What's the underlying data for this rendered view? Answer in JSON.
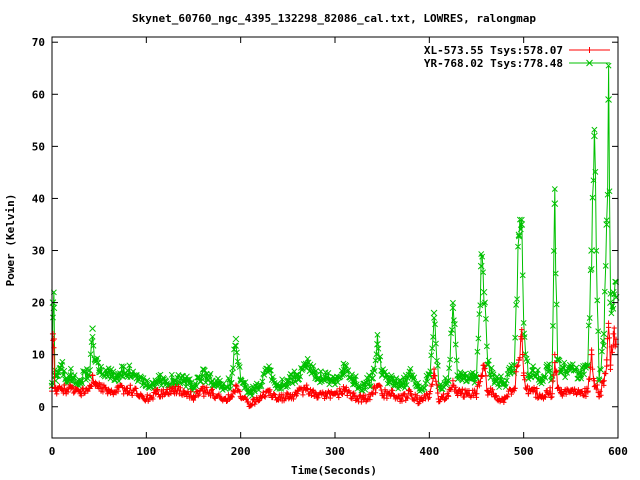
{
  "chart_data": {
    "type": "line",
    "title": "Skynet_60760_ngc_4395_132298_82086_cal.txt, LOWRES, ralongmap",
    "xlabel": "Time(Seconds)",
    "ylabel": "Power (Kelvin)",
    "xlim": [
      0,
      600
    ],
    "ylim": [
      -6,
      71
    ],
    "x_ticks": [
      0,
      100,
      200,
      300,
      400,
      500,
      600
    ],
    "y_ticks": [
      0,
      10,
      20,
      30,
      40,
      50,
      60,
      70
    ],
    "grid": false,
    "legend_position": "top-right",
    "sample_interval": 1,
    "series": [
      {
        "name": "XL-573.55 Tsys:578.07",
        "color": "#ff0000",
        "marker": "plus",
        "x": [
          0,
          1,
          2,
          3,
          4,
          5,
          6,
          10,
          15,
          20,
          30,
          40,
          43,
          46,
          50,
          60,
          70,
          80,
          90,
          100,
          110,
          120,
          130,
          140,
          150,
          160,
          170,
          180,
          190,
          195,
          200,
          210,
          220,
          230,
          240,
          250,
          260,
          270,
          280,
          290,
          300,
          310,
          320,
          330,
          340,
          345,
          350,
          360,
          370,
          380,
          390,
          400,
          405,
          410,
          420,
          425,
          430,
          440,
          450,
          455,
          458,
          462,
          470,
          480,
          490,
          495,
          498,
          500,
          505,
          510,
          520,
          525,
          530,
          533,
          536,
          540,
          550,
          560,
          568,
          572,
          575,
          580,
          585,
          588,
          590,
          592,
          595,
          598
        ],
        "y": [
          3,
          14,
          13,
          3.5,
          3,
          3,
          3.5,
          3.5,
          3,
          3.5,
          2.5,
          3.5,
          6,
          4,
          3.5,
          3,
          3,
          3.5,
          2.5,
          1.5,
          2.5,
          2.5,
          3,
          3,
          2,
          3,
          2.5,
          1.5,
          2,
          4,
          2,
          0.5,
          1.5,
          3,
          1.5,
          2,
          2.5,
          3.5,
          2.5,
          2.5,
          2.5,
          3,
          2,
          1.5,
          2.5,
          4,
          2.5,
          2.5,
          1.5,
          2.5,
          1,
          2.5,
          6,
          1.5,
          2,
          5,
          2.5,
          2.5,
          2.5,
          6,
          8,
          3,
          2,
          1.5,
          3.5,
          9,
          13,
          6,
          2.5,
          3,
          2,
          3,
          2.5,
          10,
          3.5,
          2.5,
          3,
          2.5,
          3,
          10,
          5,
          2,
          5,
          9,
          16,
          8,
          14,
          12
        ]
      },
      {
        "name": "YR-768.02 Tsys:778.48",
        "color": "#00c000",
        "marker": "cross",
        "x": [
          0,
          1,
          2,
          3,
          4,
          5,
          6,
          10,
          15,
          20,
          30,
          40,
          43,
          46,
          50,
          60,
          70,
          80,
          90,
          100,
          110,
          120,
          130,
          140,
          150,
          160,
          170,
          180,
          190,
          195,
          200,
          210,
          220,
          230,
          240,
          250,
          260,
          270,
          280,
          290,
          300,
          310,
          320,
          330,
          340,
          345,
          350,
          360,
          370,
          380,
          390,
          400,
          405,
          410,
          420,
          425,
          430,
          440,
          450,
          455,
          458,
          462,
          470,
          480,
          490,
          495,
          498,
          500,
          505,
          510,
          520,
          525,
          530,
          533,
          536,
          540,
          550,
          560,
          568,
          572,
          575,
          580,
          585,
          588,
          590,
          592,
          595,
          598
        ],
        "y": [
          4,
          20,
          19,
          6,
          5,
          6,
          6,
          8,
          5.5,
          6,
          5,
          7,
          15,
          9,
          7,
          6.5,
          6,
          7,
          5.5,
          4,
          5,
          5,
          5,
          5,
          4,
          6,
          5,
          4,
          4.5,
          13,
          5,
          2.5,
          4,
          7,
          4,
          5,
          6,
          8,
          6,
          5.5,
          5.5,
          7,
          5,
          4,
          5.5,
          12,
          6,
          5.5,
          4,
          6,
          3.5,
          6,
          18,
          4,
          5,
          19,
          6,
          6,
          5.5,
          27,
          22,
          8,
          5,
          4.5,
          8,
          33,
          35,
          14,
          6,
          7,
          5,
          8,
          6,
          39,
          9,
          7,
          7,
          6,
          8,
          30,
          52,
          5,
          14,
          35,
          59,
          20,
          22,
          21
        ]
      }
    ]
  }
}
